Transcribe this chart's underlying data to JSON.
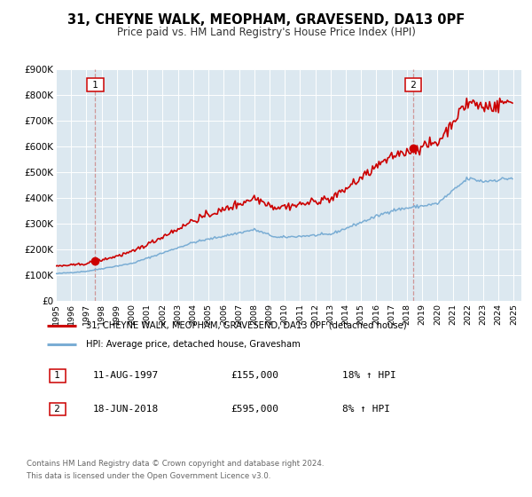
{
  "title": "31, CHEYNE WALK, MEOPHAM, GRAVESEND, DA13 0PF",
  "subtitle": "Price paid vs. HM Land Registry's House Price Index (HPI)",
  "sale1_price": 155000,
  "sale2_price": 595000,
  "legend_line1": "31, CHEYNE WALK, MEOPHAM, GRAVESEND, DA13 0PF (detached house)",
  "legend_line2": "HPI: Average price, detached house, Gravesham",
  "footer1": "Contains HM Land Registry data © Crown copyright and database right 2024.",
  "footer2": "This data is licensed under the Open Government Licence v3.0.",
  "table_row1_date": "11-AUG-1997",
  "table_row1_price": "£155,000",
  "table_row1_hpi": "18% ↑ HPI",
  "table_row2_date": "18-JUN-2018",
  "table_row2_price": "£595,000",
  "table_row2_hpi": "8% ↑ HPI",
  "red_color": "#cc0000",
  "blue_color": "#7aadd4",
  "dashed_color": "#cc9999",
  "plot_bg": "#dce8f0",
  "xmin": 1995.0,
  "xmax": 2025.5,
  "ymin": 0,
  "ymax": 900000,
  "yticks": [
    0,
    100000,
    200000,
    300000,
    400000,
    500000,
    600000,
    700000,
    800000,
    900000
  ],
  "ytick_labels": [
    "£0",
    "£100K",
    "£200K",
    "£300K",
    "£400K",
    "£500K",
    "£600K",
    "£700K",
    "£800K",
    "£900K"
  ]
}
